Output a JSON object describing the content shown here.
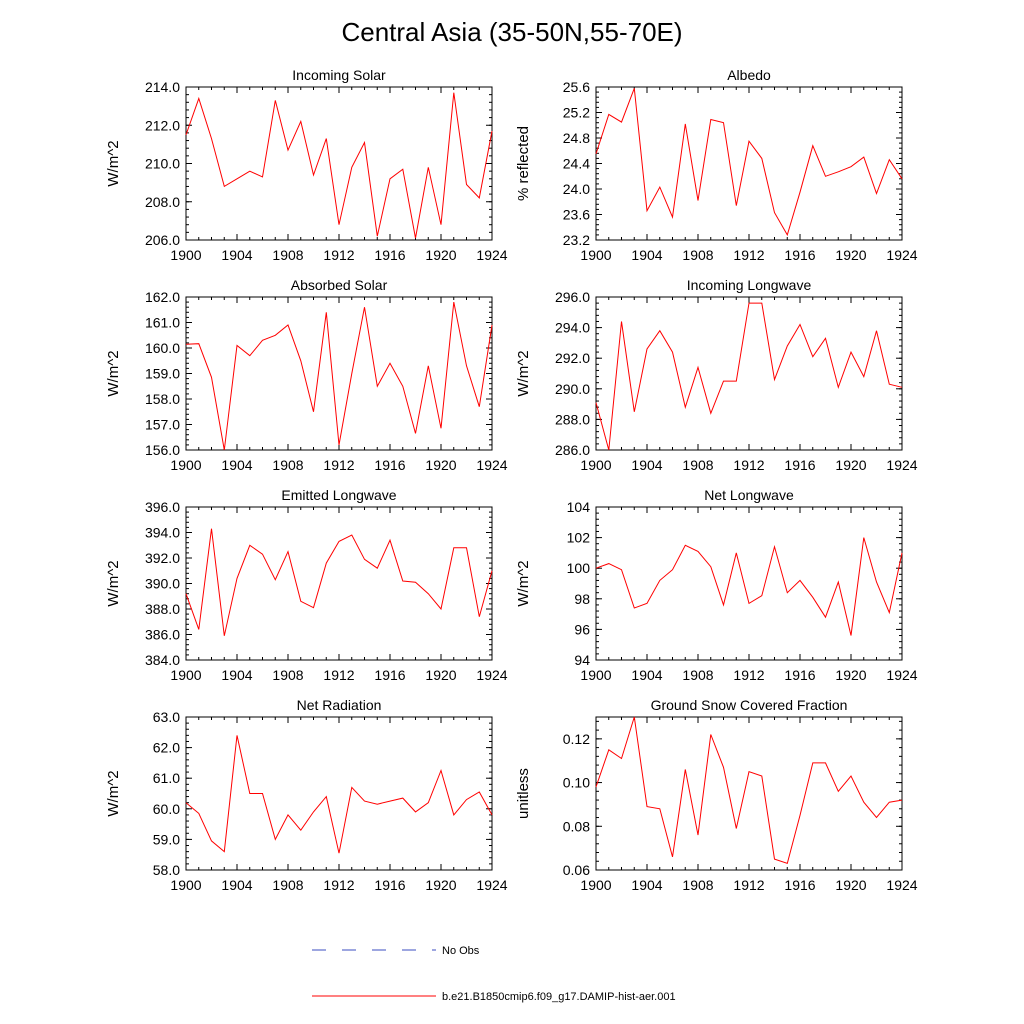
{
  "title": "Central Asia (35-50N,55-70E)",
  "legend": {
    "no_obs_label": "No Obs",
    "model_label": "b.e21.B1850cmip6.f09_g17.DAMIP-hist-aer.001",
    "colors": {
      "model": "#ff0000",
      "no_obs": "#3b4cc0"
    }
  },
  "chart_data": [
    {
      "type": "line",
      "title": "Incoming Solar",
      "ylabel": "W/m^2",
      "xlim": [
        1900,
        1924
      ],
      "ylim": [
        206,
        214
      ],
      "yticks": [
        "206.0",
        "208.0",
        "210.0",
        "212.0",
        "214.0"
      ],
      "xticks": [
        "1900",
        "1904",
        "1908",
        "1912",
        "1916",
        "1920",
        "1924"
      ],
      "series": [
        {
          "color": "#ff0000",
          "x": [
            1900,
            1901,
            1902,
            1903,
            1904,
            1905,
            1906,
            1907,
            1908,
            1909,
            1910,
            1911,
            1912,
            1913,
            1914,
            1915,
            1916,
            1917,
            1918,
            1919,
            1920,
            1921,
            1922,
            1923,
            1924
          ],
          "values": [
            211.5,
            213.4,
            211.3,
            208.8,
            209.2,
            209.6,
            209.3,
            213.3,
            210.7,
            212.2,
            209.4,
            211.3,
            206.8,
            209.8,
            211.1,
            206.2,
            209.2,
            209.7,
            206.1,
            209.8,
            206.8,
            213.7,
            208.9,
            208.2,
            211.7
          ]
        }
      ]
    },
    {
      "type": "line",
      "title": "Albedo",
      "ylabel": "% reflected",
      "xlim": [
        1900,
        1924
      ],
      "ylim": [
        23.2,
        25.6
      ],
      "yticks": [
        "23.2",
        "23.6",
        "24.0",
        "24.4",
        "24.8",
        "25.2",
        "25.6"
      ],
      "xticks": [
        "1900",
        "1904",
        "1908",
        "1912",
        "1916",
        "1920",
        "1924"
      ],
      "series": [
        {
          "color": "#ff0000",
          "x": [
            1900,
            1901,
            1902,
            1903,
            1904,
            1905,
            1906,
            1907,
            1908,
            1909,
            1910,
            1911,
            1912,
            1913,
            1914,
            1915,
            1916,
            1917,
            1918,
            1919,
            1920,
            1921,
            1922,
            1923,
            1924
          ],
          "values": [
            24.55,
            25.17,
            25.05,
            25.58,
            23.66,
            24.03,
            23.56,
            25.02,
            23.82,
            25.09,
            25.04,
            23.74,
            24.75,
            24.48,
            23.63,
            23.28,
            23.95,
            24.68,
            24.2,
            24.27,
            24.35,
            24.5,
            23.93,
            24.46,
            24.16
          ]
        }
      ]
    },
    {
      "type": "line",
      "title": "Absorbed Solar",
      "ylabel": "W/m^2",
      "xlim": [
        1900,
        1924
      ],
      "ylim": [
        156,
        162
      ],
      "yticks": [
        "156.0",
        "157.0",
        "158.0",
        "159.0",
        "160.0",
        "161.0",
        "162.0"
      ],
      "xticks": [
        "1900",
        "1904",
        "1908",
        "1912",
        "1916",
        "1920",
        "1924"
      ],
      "series": [
        {
          "color": "#ff0000",
          "x": [
            1900,
            1901,
            1902,
            1903,
            1904,
            1905,
            1906,
            1907,
            1908,
            1909,
            1910,
            1911,
            1912,
            1913,
            1914,
            1915,
            1916,
            1917,
            1918,
            1919,
            1920,
            1921,
            1922,
            1923,
            1924
          ],
          "values": [
            160.15,
            160.17,
            158.85,
            156.0,
            160.1,
            159.7,
            160.3,
            160.5,
            160.9,
            159.5,
            157.5,
            161.4,
            156.2,
            159.0,
            161.6,
            158.5,
            159.4,
            158.5,
            156.65,
            159.3,
            156.85,
            161.8,
            159.3,
            157.7,
            160.9
          ]
        }
      ]
    },
    {
      "type": "line",
      "title": "Incoming Longwave",
      "ylabel": "W/m^2",
      "xlim": [
        1900,
        1924
      ],
      "ylim": [
        286,
        296
      ],
      "yticks": [
        "286.0",
        "288.0",
        "290.0",
        "292.0",
        "294.0",
        "296.0"
      ],
      "xticks": [
        "1900",
        "1904",
        "1908",
        "1912",
        "1916",
        "1920",
        "1924"
      ],
      "series": [
        {
          "color": "#ff0000",
          "x": [
            1900,
            1901,
            1902,
            1903,
            1904,
            1905,
            1906,
            1907,
            1908,
            1909,
            1910,
            1911,
            1912,
            1913,
            1914,
            1915,
            1916,
            1917,
            1918,
            1919,
            1920,
            1921,
            1922,
            1923,
            1924
          ],
          "values": [
            289.1,
            286.0,
            294.4,
            288.5,
            292.6,
            293.8,
            292.4,
            288.8,
            291.4,
            288.4,
            290.5,
            290.5,
            295.6,
            295.6,
            290.6,
            292.8,
            294.2,
            292.1,
            293.3,
            290.1,
            292.4,
            290.8,
            293.8,
            290.3,
            290.1
          ]
        }
      ]
    },
    {
      "type": "line",
      "title": "Emitted Longwave",
      "ylabel": "W/m^2",
      "xlim": [
        1900,
        1924
      ],
      "ylim": [
        384,
        396
      ],
      "yticks": [
        "384.0",
        "386.0",
        "388.0",
        "390.0",
        "392.0",
        "394.0",
        "396.0"
      ],
      "xticks": [
        "1900",
        "1904",
        "1908",
        "1912",
        "1916",
        "1920",
        "1924"
      ],
      "series": [
        {
          "color": "#ff0000",
          "x": [
            1900,
            1901,
            1902,
            1903,
            1904,
            1905,
            1906,
            1907,
            1908,
            1909,
            1910,
            1911,
            1912,
            1913,
            1914,
            1915,
            1916,
            1917,
            1918,
            1919,
            1920,
            1921,
            1922,
            1923,
            1924
          ],
          "values": [
            389.2,
            386.4,
            394.3,
            385.9,
            390.4,
            393.0,
            392.3,
            390.3,
            392.5,
            388.6,
            388.1,
            391.6,
            393.3,
            393.8,
            391.9,
            391.2,
            393.4,
            390.2,
            390.1,
            389.2,
            388.0,
            392.8,
            392.8,
            387.4,
            391.0
          ]
        }
      ]
    },
    {
      "type": "line",
      "title": "Net Longwave",
      "ylabel": "W/m^2",
      "xlim": [
        1900,
        1924
      ],
      "ylim": [
        94,
        104
      ],
      "yticks": [
        "94",
        "96",
        "98",
        "100",
        "102",
        "104"
      ],
      "xticks": [
        "1900",
        "1904",
        "1908",
        "1912",
        "1916",
        "1920",
        "1924"
      ],
      "series": [
        {
          "color": "#ff0000",
          "x": [
            1900,
            1901,
            1902,
            1903,
            1904,
            1905,
            1906,
            1907,
            1908,
            1909,
            1910,
            1911,
            1912,
            1913,
            1914,
            1915,
            1916,
            1917,
            1918,
            1919,
            1920,
            1921,
            1922,
            1923,
            1924
          ],
          "values": [
            100.0,
            100.3,
            99.9,
            97.4,
            97.7,
            99.2,
            99.9,
            101.5,
            101.1,
            100.1,
            97.6,
            101.0,
            97.7,
            98.2,
            101.4,
            98.4,
            99.2,
            98.1,
            96.8,
            99.1,
            95.6,
            102.0,
            99.1,
            97.1,
            101.0
          ]
        }
      ]
    },
    {
      "type": "line",
      "title": "Net Radiation",
      "ylabel": "W/m^2",
      "xlim": [
        1900,
        1924
      ],
      "ylim": [
        58,
        63
      ],
      "yticks": [
        "58.0",
        "59.0",
        "60.0",
        "61.0",
        "62.0",
        "63.0"
      ],
      "xticks": [
        "1900",
        "1904",
        "1908",
        "1912",
        "1916",
        "1920",
        "1924"
      ],
      "series": [
        {
          "color": "#ff0000",
          "x": [
            1900,
            1901,
            1902,
            1903,
            1904,
            1905,
            1906,
            1907,
            1908,
            1909,
            1910,
            1911,
            1912,
            1913,
            1914,
            1915,
            1916,
            1917,
            1918,
            1919,
            1920,
            1921,
            1922,
            1923,
            1924
          ],
          "values": [
            60.2,
            59.85,
            58.95,
            58.6,
            62.4,
            60.5,
            60.5,
            59.0,
            59.8,
            59.3,
            59.9,
            60.4,
            58.55,
            60.7,
            60.25,
            60.15,
            60.25,
            60.35,
            59.9,
            60.2,
            61.25,
            59.8,
            60.3,
            60.55,
            59.8
          ]
        }
      ]
    },
    {
      "type": "line",
      "title": "Ground Snow Covered Fraction",
      "ylabel": "unitless",
      "xlim": [
        1900,
        1924
      ],
      "ylim": [
        0.06,
        0.13
      ],
      "yticks": [
        "0.06",
        "0.08",
        "0.10",
        "0.12"
      ],
      "ytick_values": [
        0.06,
        0.08,
        0.1,
        0.12
      ],
      "xticks": [
        "1900",
        "1904",
        "1908",
        "1912",
        "1916",
        "1920",
        "1924"
      ],
      "series": [
        {
          "color": "#ff0000",
          "x": [
            1900,
            1901,
            1902,
            1903,
            1904,
            1905,
            1906,
            1907,
            1908,
            1909,
            1910,
            1911,
            1912,
            1913,
            1914,
            1915,
            1916,
            1917,
            1918,
            1919,
            1920,
            1921,
            1922,
            1923,
            1924
          ],
          "values": [
            0.098,
            0.115,
            0.111,
            0.13,
            0.089,
            0.088,
            0.066,
            0.106,
            0.076,
            0.122,
            0.107,
            0.079,
            0.105,
            0.103,
            0.065,
            0.063,
            0.085,
            0.109,
            0.109,
            0.096,
            0.103,
            0.091,
            0.084,
            0.091,
            0.092
          ]
        }
      ]
    }
  ]
}
